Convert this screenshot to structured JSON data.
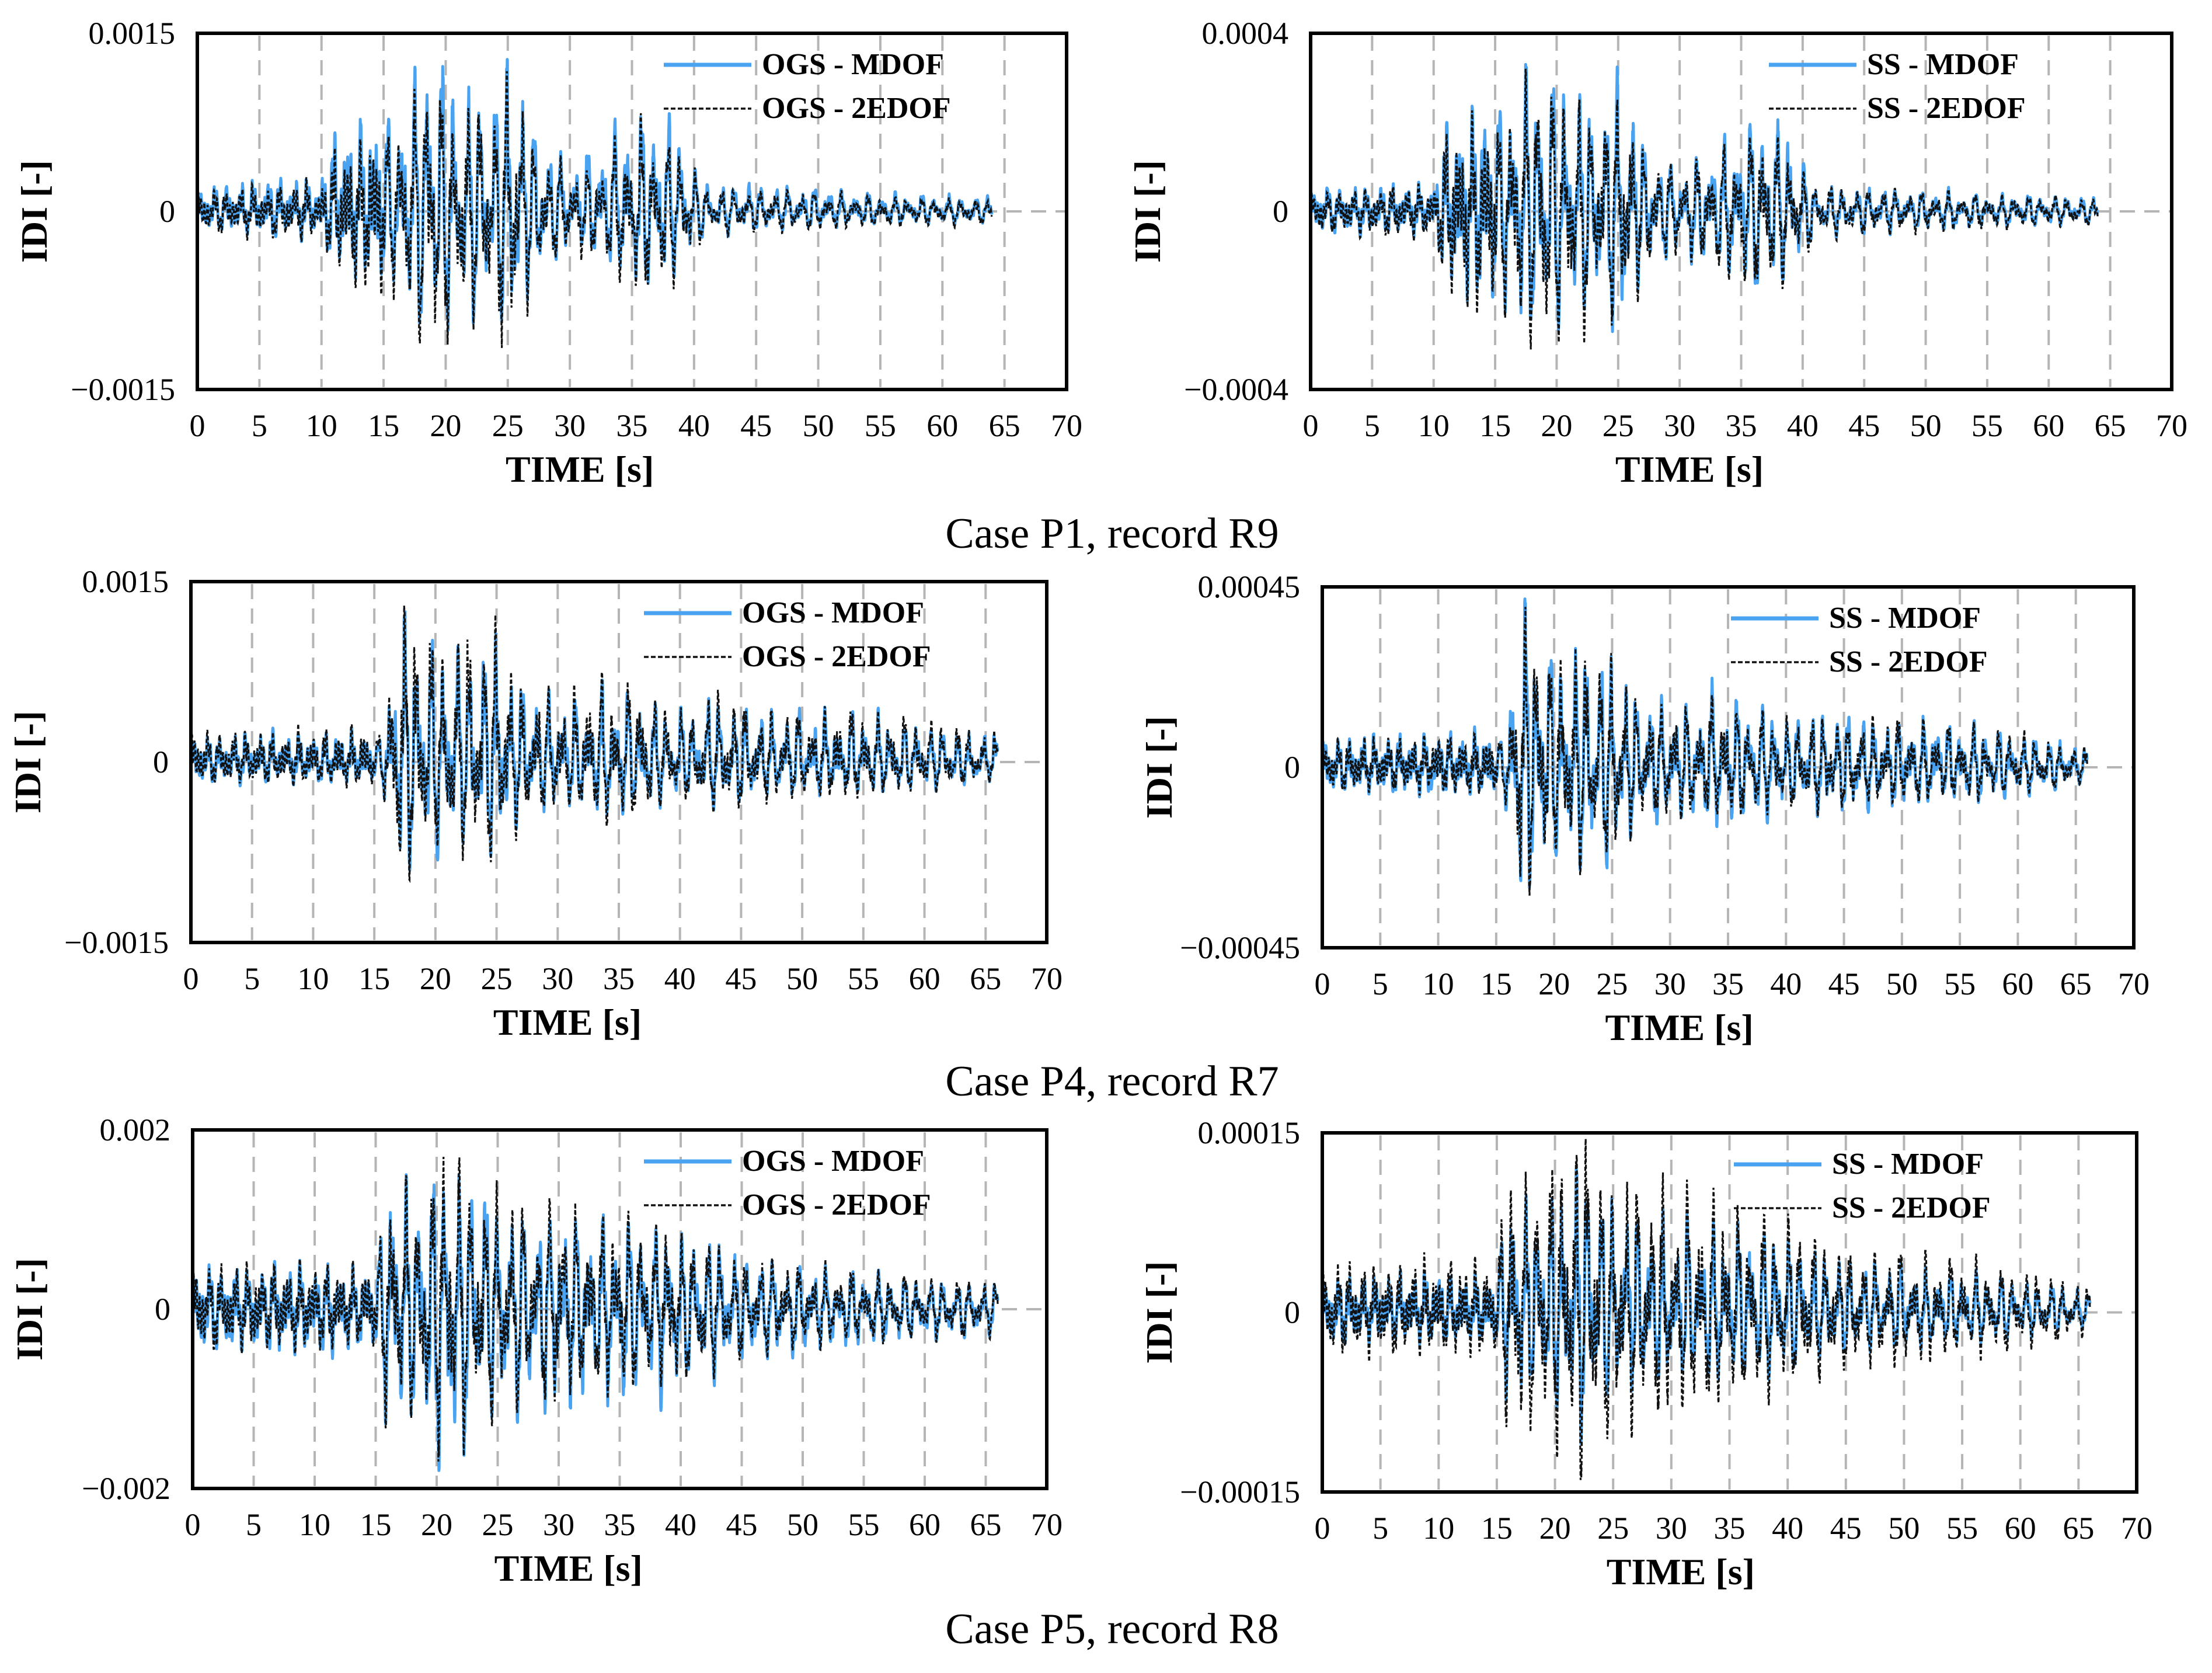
{
  "figure": {
    "captions": [
      "Case P1, record R9",
      "Case P4, record R7",
      "Case P5, record R8"
    ]
  },
  "colors": {
    "mdof": "#4aa3f0",
    "edof": "#111111",
    "grid": "#b5b5b5"
  },
  "chart_data": [
    {
      "type": "line",
      "id": "p1-ogs",
      "caption": "Case P1, record R9",
      "xlabel": "TIME [s]",
      "ylabel": "IDI [-]",
      "xlim": [
        0,
        70
      ],
      "xticks": [
        "0",
        "5",
        "10",
        "15",
        "20",
        "25",
        "30",
        "35",
        "40",
        "45",
        "50",
        "55",
        "60",
        "65",
        "70"
      ],
      "ylim": [
        -0.0015,
        0.0015
      ],
      "yticks": [
        "0.0015",
        "0",
        "−0.0015"
      ],
      "ytick_values": [
        0.0015,
        0,
        -0.0015
      ],
      "grid": "vertical dashed every 5 s",
      "legend": "top-right",
      "duration": 64,
      "series": [
        {
          "name": "OGS - MDOF",
          "style": "solid"
        },
        {
          "name": "OGS - 2EDOF",
          "style": "dashed"
        }
      ],
      "envelope": {
        "t": [
          0,
          10,
          11,
          15,
          17,
          18.5,
          19.5,
          21,
          24,
          25.5,
          27,
          30,
          33,
          36.5,
          38.5,
          41,
          47,
          55,
          64
        ],
        "amp": [
          0.00015,
          0.0002,
          0.00045,
          0.0006,
          0.0009,
          0.00128,
          0.0011,
          0.00095,
          0.0009,
          0.0012,
          0.0006,
          0.00035,
          0.0005,
          0.00075,
          0.0006,
          0.0002,
          0.00018,
          0.00013,
          0.0001
        ]
      },
      "peaks": {
        "mdof_max": 0.00128,
        "mdof_min": -0.001,
        "edof_max": 0.00118,
        "edof_min": -0.00115
      }
    },
    {
      "type": "line",
      "id": "p1-ss",
      "caption": "Case P1, record R9",
      "xlabel": "TIME [s]",
      "ylabel": "IDI [-]",
      "xlim": [
        0,
        70
      ],
      "xticks": [
        "0",
        "5",
        "10",
        "15",
        "20",
        "25",
        "30",
        "35",
        "40",
        "45",
        "50",
        "55",
        "60",
        "65",
        "70"
      ],
      "ylim": [
        -0.0004,
        0.0004
      ],
      "yticks": [
        "0.0004",
        "0",
        "−0.0004"
      ],
      "ytick_values": [
        0.0004,
        0,
        -0.0004
      ],
      "grid": "vertical dashed every 5 s",
      "legend": "top-right",
      "duration": 64,
      "series": [
        {
          "name": "SS - MDOF",
          "style": "solid"
        },
        {
          "name": "SS - 2EDOF",
          "style": "dashed"
        }
      ],
      "envelope": {
        "t": [
          0,
          10,
          11,
          15,
          17,
          18.5,
          19.5,
          21,
          24,
          25.5,
          27,
          30,
          33,
          36.5,
          38.5,
          41,
          47,
          55,
          64
        ],
        "amp": [
          4e-05,
          5e-05,
          0.00015,
          0.0002,
          0.00028,
          0.00033,
          0.0003,
          0.00026,
          0.00024,
          0.0003,
          0.00015,
          0.0001,
          0.00014,
          0.0002,
          0.00018,
          6e-05,
          5e-05,
          4e-05,
          3e-05
        ]
      },
      "peaks": {
        "mdof_max": 0.00033,
        "mdof_min": -0.00027,
        "edof_max": 0.00032,
        "edof_min": -0.00031
      }
    },
    {
      "type": "line",
      "id": "p4-ogs",
      "caption": "Case P4, record R7",
      "xlabel": "TIME [s]",
      "ylabel": "IDI [-]",
      "xlim": [
        0,
        70
      ],
      "xticks": [
        "0",
        "5",
        "10",
        "15",
        "20",
        "25",
        "30",
        "35",
        "40",
        "45",
        "50",
        "55",
        "60",
        "65",
        "70"
      ],
      "ylim": [
        -0.0015,
        0.0015
      ],
      "yticks": [
        "0.0015",
        "0",
        "−0.0015"
      ],
      "ytick_values": [
        0.0015,
        0,
        -0.0015
      ],
      "grid": "vertical dashed every 5 s",
      "legend": "top-right",
      "duration": 66,
      "series": [
        {
          "name": "OGS - MDOF",
          "style": "solid"
        },
        {
          "name": "OGS - 2EDOF",
          "style": "dashed"
        }
      ],
      "envelope": {
        "t": [
          0,
          15.5,
          16.5,
          17,
          18.5,
          20,
          25,
          27,
          32,
          34,
          40,
          43,
          48,
          55,
          60,
          66
        ],
        "amp": [
          0.00018,
          0.0002,
          0.0008,
          0.00128,
          0.0011,
          0.0009,
          0.00095,
          0.0006,
          0.0005,
          0.00065,
          0.0004,
          0.0005,
          0.0004,
          0.00038,
          0.0003,
          0.0002
        ]
      },
      "peaks": {
        "mdof_max": 0.00125,
        "mdof_min": -0.0009,
        "edof_max": 0.0013,
        "edof_min": -0.00098
      }
    },
    {
      "type": "line",
      "id": "p4-ss",
      "caption": "Case P4, record R7",
      "xlabel": "TIME [s]",
      "ylabel": "IDI [-]",
      "xlim": [
        0,
        70
      ],
      "xticks": [
        "0",
        "5",
        "10",
        "15",
        "20",
        "25",
        "30",
        "35",
        "40",
        "45",
        "50",
        "55",
        "60",
        "65",
        "70"
      ],
      "ylim": [
        -0.00045,
        0.00045
      ],
      "yticks": [
        "0.00045",
        "0",
        "−0.00045"
      ],
      "ytick_values": [
        0.00045,
        0,
        -0.00045
      ],
      "grid": "vertical dashed every 5 s",
      "legend": "top-right",
      "duration": 66,
      "series": [
        {
          "name": "SS - MDOF",
          "style": "solid"
        },
        {
          "name": "SS - 2EDOF",
          "style": "dashed"
        }
      ],
      "envelope": {
        "t": [
          0,
          15.5,
          16.5,
          17,
          18.5,
          20,
          25,
          27,
          32,
          34,
          40,
          43,
          48,
          55,
          60,
          66
        ],
        "amp": [
          6e-05,
          7e-05,
          0.00025,
          0.00042,
          0.00036,
          0.0003,
          0.00029,
          0.00018,
          0.00015,
          0.00018,
          0.00012,
          0.00014,
          0.00012,
          0.00011,
          9e-05,
          5e-05
        ]
      },
      "peaks": {
        "mdof_max": 0.00042,
        "mdof_min": -0.0003,
        "edof_max": 0.0004,
        "edof_min": -0.00032
      }
    },
    {
      "type": "line",
      "id": "p5-ogs",
      "caption": "Case P5, record R8",
      "xlabel": "TIME [s]",
      "ylabel": "IDI [-]",
      "xlim": [
        0,
        70
      ],
      "xticks": [
        "0",
        "5",
        "10",
        "15",
        "20",
        "25",
        "30",
        "35",
        "40",
        "45",
        "50",
        "55",
        "60",
        "65",
        "70"
      ],
      "ylim": [
        -0.002,
        0.002
      ],
      "yticks": [
        "0.002",
        "0",
        "−0.002"
      ],
      "ytick_values": [
        0.002,
        0,
        -0.002
      ],
      "grid": "vertical dashed every 5 s",
      "legend": "top-right",
      "duration": 66,
      "series": [
        {
          "name": "OGS - MDOF",
          "style": "solid"
        },
        {
          "name": "OGS - 2EDOF",
          "style": "dashed"
        }
      ],
      "envelope": {
        "t": [
          0,
          15,
          16,
          18,
          21,
          22,
          25,
          30,
          35,
          40,
          45,
          50,
          55,
          66
        ],
        "amp": [
          0.0004,
          0.0004,
          0.0015,
          0.0012,
          0.0018,
          0.0016,
          0.0012,
          0.0011,
          0.001,
          0.0009,
          0.0006,
          0.0005,
          0.0004,
          0.0003
        ]
      },
      "peaks": {
        "mdof_max": 0.0015,
        "mdof_min": -0.0018,
        "edof_max": 0.0017,
        "edof_min": -0.0017
      }
    },
    {
      "type": "line",
      "id": "p5-ss",
      "caption": "Case P5, record R8",
      "xlabel": "TIME [s]",
      "ylabel": "IDI [-]",
      "xlim": [
        0,
        70
      ],
      "xticks": [
        "0",
        "5",
        "10",
        "15",
        "20",
        "25",
        "30",
        "35",
        "40",
        "45",
        "50",
        "55",
        "60",
        "65",
        "70"
      ],
      "ylim": [
        -0.00015,
        0.00015
      ],
      "yticks": [
        "0.00015",
        "0",
        "−0.00015"
      ],
      "ytick_values": [
        0.00015,
        0,
        -0.00015
      ],
      "grid": "vertical dashed every 5 s",
      "legend": "top-right",
      "duration": 66,
      "series": [
        {
          "name": "SS - MDOF",
          "style": "solid"
        },
        {
          "name": "SS - 2EDOF",
          "style": "dashed"
        }
      ],
      "envelope": {
        "t": [
          0,
          15,
          16,
          18,
          21,
          22,
          25,
          30,
          35,
          40,
          45,
          50,
          55,
          66
        ],
        "amp": [
          3e-05,
          3e-05,
          0.00012,
          0.0001,
          0.00013,
          0.000145,
          0.0001,
          9e-05,
          8e-05,
          7e-05,
          5e-05,
          4.5e-05,
          4e-05,
          2e-05
        ]
      },
      "peaks": {
        "mdof_max": 0.00012,
        "mdof_min": -0.00011,
        "edof_max": 0.000145,
        "edof_min": -0.00014
      }
    }
  ]
}
